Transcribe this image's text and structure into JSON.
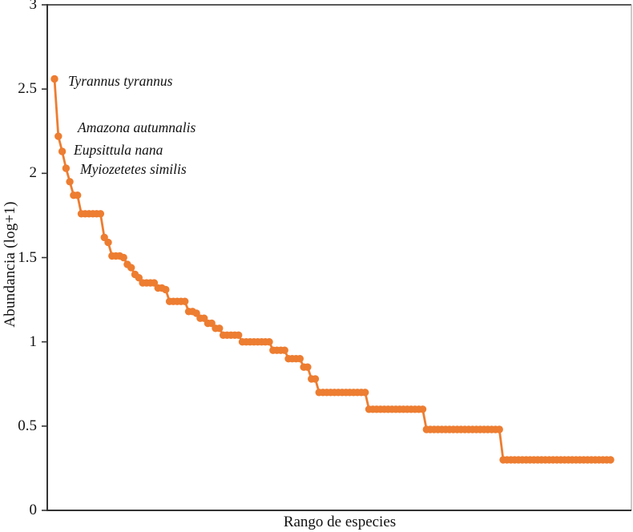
{
  "chart_data": {
    "type": "line",
    "title": "",
    "xlabel": "Rango de especies",
    "ylabel": "Abundancia (log+1)",
    "ylim": [
      0,
      3
    ],
    "ytick_labels": [
      "3",
      "2.5",
      "2",
      "1.5",
      "1",
      "0.5",
      "0"
    ],
    "ytick_values": [
      3,
      2.5,
      2,
      1.5,
      1,
      0.5,
      0
    ],
    "x_is_rank": true,
    "n_species": 147,
    "grid": false,
    "legend": "none",
    "series_color": "#ED7D31",
    "values": [
      2.56,
      2.22,
      2.13,
      2.03,
      1.95,
      1.87,
      1.87,
      1.76,
      1.76,
      1.76,
      1.76,
      1.76,
      1.76,
      1.62,
      1.59,
      1.51,
      1.51,
      1.51,
      1.5,
      1.46,
      1.44,
      1.4,
      1.38,
      1.35,
      1.35,
      1.35,
      1.35,
      1.32,
      1.32,
      1.31,
      1.24,
      1.24,
      1.24,
      1.24,
      1.24,
      1.18,
      1.18,
      1.17,
      1.14,
      1.14,
      1.11,
      1.11,
      1.08,
      1.08,
      1.04,
      1.04,
      1.04,
      1.04,
      1.04,
      1.0,
      1.0,
      1.0,
      1.0,
      1.0,
      1.0,
      1.0,
      1.0,
      0.95,
      0.95,
      0.95,
      0.95,
      0.9,
      0.9,
      0.9,
      0.9,
      0.85,
      0.85,
      0.78,
      0.78,
      0.7,
      0.7,
      0.7,
      0.7,
      0.7,
      0.7,
      0.7,
      0.7,
      0.7,
      0.7,
      0.7,
      0.7,
      0.7,
      0.6,
      0.6,
      0.6,
      0.6,
      0.6,
      0.6,
      0.6,
      0.6,
      0.6,
      0.6,
      0.6,
      0.6,
      0.6,
      0.6,
      0.6,
      0.48,
      0.48,
      0.48,
      0.48,
      0.48,
      0.48,
      0.48,
      0.48,
      0.48,
      0.48,
      0.48,
      0.48,
      0.48,
      0.48,
      0.48,
      0.48,
      0.48,
      0.48,
      0.48,
      0.48,
      0.3,
      0.3,
      0.3,
      0.3,
      0.3,
      0.3,
      0.3,
      0.3,
      0.3,
      0.3,
      0.3,
      0.3,
      0.3,
      0.3,
      0.3,
      0.3,
      0.3,
      0.3,
      0.3,
      0.3,
      0.3,
      0.3,
      0.3,
      0.3,
      0.3,
      0.3,
      0.3,
      0.3,
      0.3
    ],
    "annotations": [
      {
        "label": "Tyrannus tyrannus",
        "x": 85,
        "y": 91
      },
      {
        "label": "Amazona autumnalis",
        "x": 97,
        "y": 149
      },
      {
        "label": "Eupsittula nana",
        "x": 92,
        "y": 177
      },
      {
        "label": "Myiozetetes similis",
        "x": 100,
        "y": 201
      }
    ],
    "colors": {
      "series": "#ED7D31",
      "axis": "#333333",
      "plot_border_top": "#595959",
      "plot_border_right": "#A6A6A6",
      "text": "#111111"
    }
  }
}
